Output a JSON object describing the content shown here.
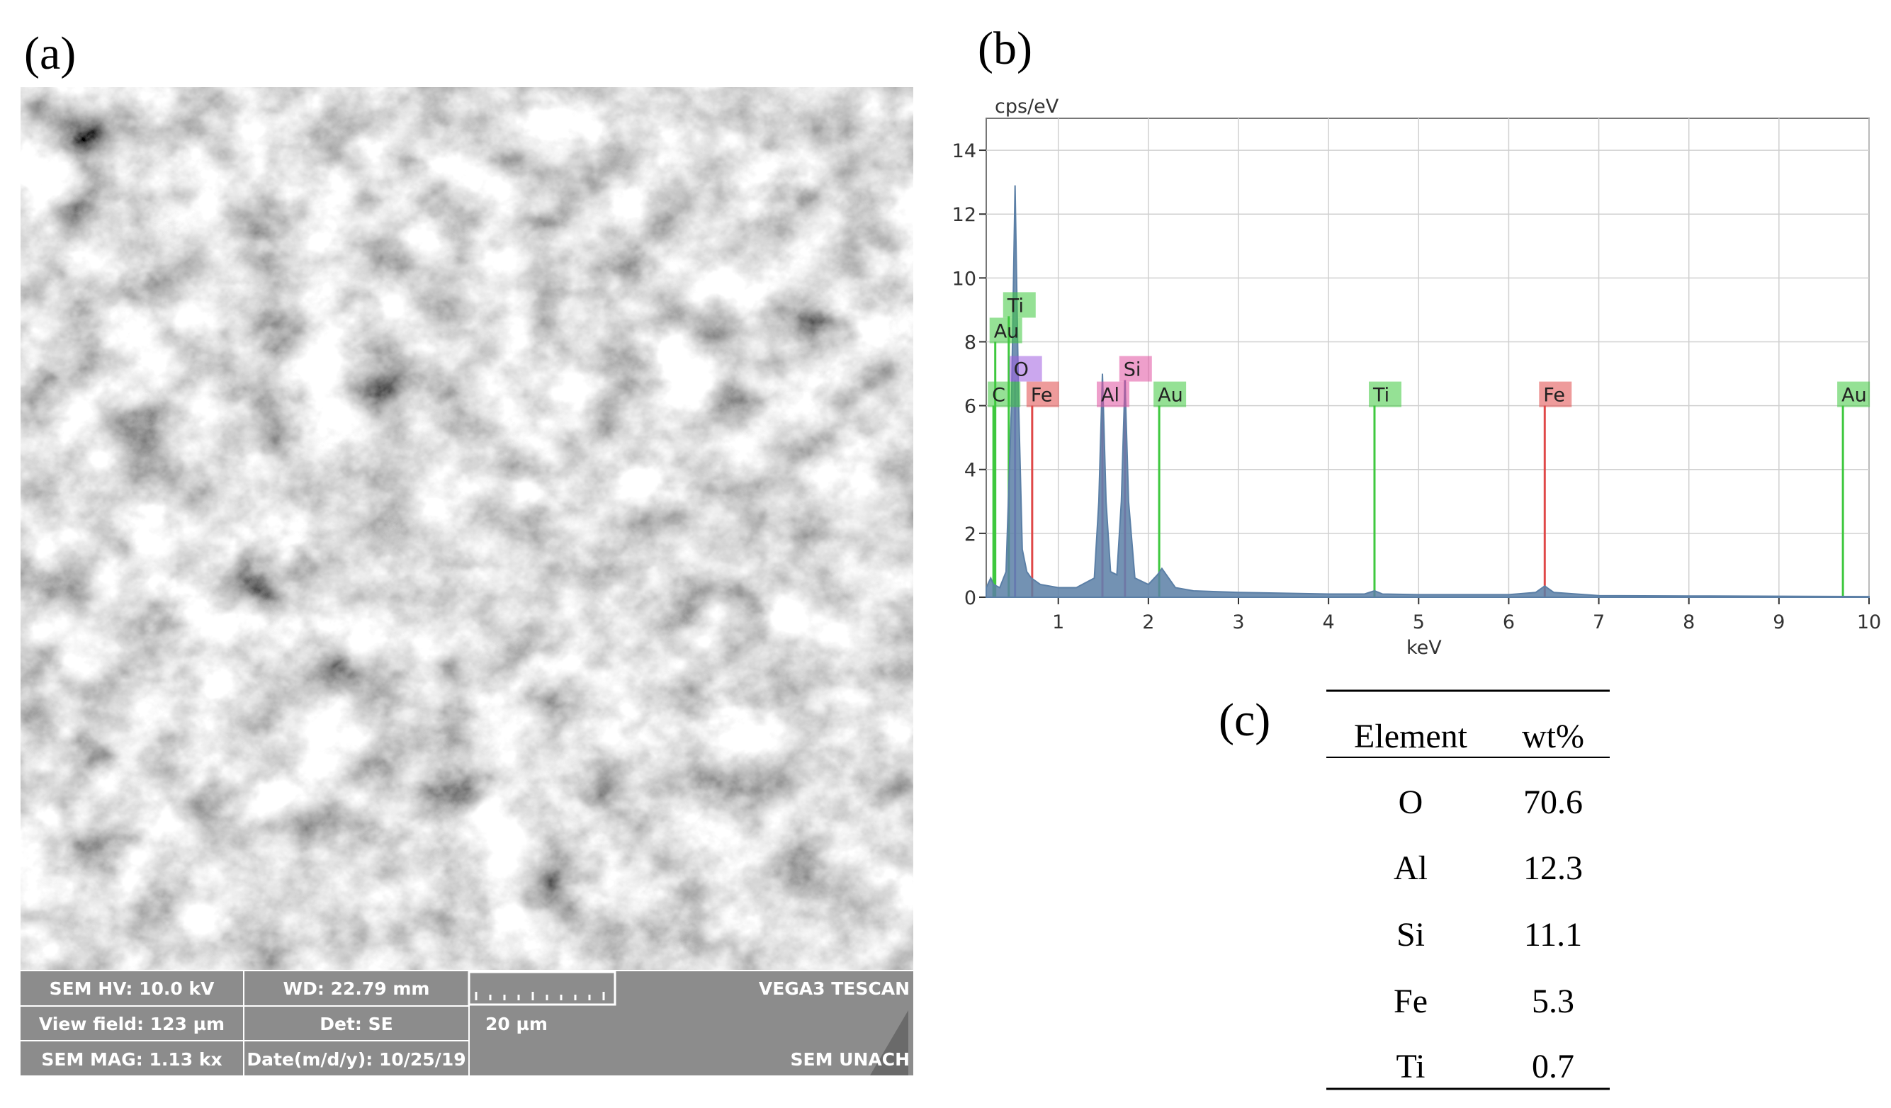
{
  "panel_labels": [
    "(a)",
    "(b)",
    "(c)"
  ],
  "sem_info": {
    "rows": [
      [
        "SEM HV: 10.0 kV",
        "WD: 22.79 mm",
        "",
        "VEGA3 TESCAN"
      ],
      [
        "View field: 123 µm",
        "Det: SE",
        "20 µm",
        ""
      ],
      [
        "SEM MAG: 1.13 kx",
        "Date(m/d/y): 10/25/19",
        "",
        "SEM UNACH"
      ]
    ]
  },
  "chart_data": {
    "type": "area",
    "y_label": "cps/eV",
    "x_label": "keV",
    "color": "#5b7fa6",
    "x": [
      0.2,
      0.25,
      0.28,
      0.35,
      0.42,
      0.48,
      0.52,
      0.56,
      0.6,
      0.65,
      0.7,
      0.8,
      1.0,
      1.2,
      1.4,
      1.45,
      1.49,
      1.53,
      1.58,
      1.65,
      1.7,
      1.74,
      1.78,
      1.85,
      2.0,
      2.1,
      2.15,
      2.2,
      2.3,
      2.5,
      3.0,
      4.0,
      4.4,
      4.51,
      4.6,
      5.0,
      6.0,
      6.3,
      6.4,
      6.5,
      7.0,
      8.0,
      9.0,
      10.0
    ],
    "values": [
      0.3,
      0.6,
      0.4,
      0.3,
      0.8,
      6,
      12.9,
      6,
      1.5,
      0.8,
      0.6,
      0.4,
      0.3,
      0.3,
      0.6,
      3,
      7,
      3,
      0.8,
      0.7,
      3,
      6.8,
      3,
      0.6,
      0.4,
      0.7,
      0.9,
      0.7,
      0.3,
      0.2,
      0.15,
      0.1,
      0.1,
      0.2,
      0.1,
      0.08,
      0.08,
      0.15,
      0.35,
      0.15,
      0.05,
      0.04,
      0.03,
      0.02
    ],
    "xlim": [
      0.2,
      10
    ],
    "ylim": [
      0,
      15
    ],
    "xticks": [
      1,
      2,
      3,
      4,
      5,
      6,
      7,
      8,
      9,
      10
    ],
    "yticks": [
      0,
      2,
      4,
      6,
      8,
      10,
      12,
      14
    ],
    "grid": true,
    "markers": [
      {
        "label": "C",
        "x": 0.28,
        "height": 6,
        "color": "#3ec83e"
      },
      {
        "label": "Au",
        "x": 0.3,
        "height": 8,
        "color": "#3ec83e"
      },
      {
        "label": "Ti",
        "x": 0.45,
        "height": 8.8,
        "color": "#3ec83e"
      },
      {
        "label": "O",
        "x": 0.52,
        "height": 6.8,
        "color": "#a05ee0"
      },
      {
        "label": "Fe",
        "x": 0.71,
        "height": 6,
        "color": "#e04848"
      },
      {
        "label": "Al",
        "x": 1.49,
        "height": 6,
        "color": "#e050a0"
      },
      {
        "label": "Si",
        "x": 1.74,
        "height": 6.8,
        "color": "#e050a0"
      },
      {
        "label": "Au",
        "x": 2.12,
        "height": 6,
        "color": "#3ec83e"
      },
      {
        "label": "Ti",
        "x": 4.51,
        "height": 6,
        "color": "#3ec83e"
      },
      {
        "label": "Fe",
        "x": 6.4,
        "height": 6,
        "color": "#e04848"
      },
      {
        "label": "Au",
        "x": 9.71,
        "height": 6,
        "color": "#3ec83e"
      }
    ]
  },
  "table": {
    "header": [
      "Element",
      "wt%"
    ],
    "rows": [
      [
        "O",
        "70.6"
      ],
      [
        "Al",
        "12.3"
      ],
      [
        "Si",
        "11.1"
      ],
      [
        "Fe",
        "5.3"
      ],
      [
        "Ti",
        "0.7"
      ]
    ]
  }
}
